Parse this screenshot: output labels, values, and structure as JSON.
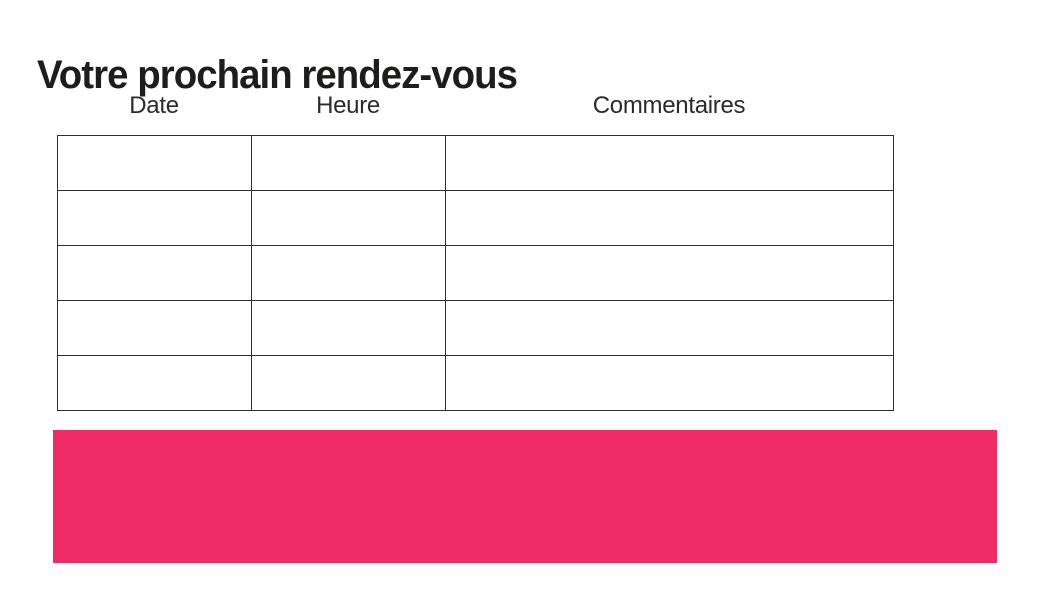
{
  "page": {
    "title": "Votre prochain rendez-vous"
  },
  "table": {
    "columns": [
      "Date",
      "Heure",
      "Commentaires"
    ],
    "row_count": 5,
    "rows": [
      [
        "",
        "",
        ""
      ],
      [
        "",
        "",
        ""
      ],
      [
        "",
        "",
        ""
      ],
      [
        "",
        "",
        ""
      ],
      [
        "",
        "",
        ""
      ]
    ]
  },
  "colors": {
    "accent_pink": "#EE2D67",
    "table_border": "#2E2E2E",
    "title_text": "#1D1D1B",
    "header_text": "#2B2B2B"
  }
}
